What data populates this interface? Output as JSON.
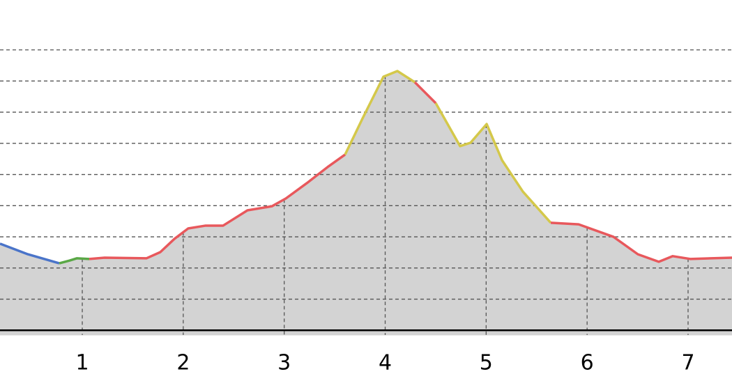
{
  "chart_data": {
    "type": "area",
    "xlim": [
      0.185,
      7.435
    ],
    "xticks": [
      1,
      2,
      3,
      4,
      5,
      6,
      7
    ],
    "ylim": [
      -0.15,
      10.6
    ],
    "yticks": [
      0,
      1,
      2,
      3,
      4,
      5,
      6,
      7,
      8,
      9
    ],
    "grid": true,
    "fill_color": "#d3d3d3",
    "series": [
      {
        "color": "#4a74c9",
        "x": [
          0.185,
          0.461,
          0.772
        ],
        "values": [
          2.78,
          2.44,
          2.15
        ]
      },
      {
        "color": "#5aa846",
        "x": [
          0.772,
          0.876,
          0.945,
          1.069
        ],
        "values": [
          2.15,
          2.24,
          2.31,
          2.29
        ]
      },
      {
        "color": "#e8585c",
        "x": [
          1.069,
          1.221,
          1.635,
          1.773,
          1.911,
          2.049,
          2.222,
          2.395,
          2.636,
          2.878,
          3.016,
          3.223,
          3.43,
          3.603
        ],
        "values": [
          2.29,
          2.33,
          2.31,
          2.51,
          2.93,
          3.27,
          3.36,
          3.36,
          3.85,
          3.98,
          4.23,
          4.72,
          5.24,
          5.64
        ]
      },
      {
        "color": "#d4c84a",
        "x": [
          3.603,
          3.776,
          3.983,
          4.121,
          4.294
        ],
        "values": [
          5.64,
          6.8,
          8.14,
          8.32,
          7.96
        ]
      },
      {
        "color": "#e8585c",
        "x": [
          4.294,
          4.501
        ],
        "values": [
          7.96,
          7.29
        ]
      },
      {
        "color": "#d4c84a",
        "x": [
          4.501,
          4.742,
          4.846,
          5.005,
          5.157,
          5.364,
          5.64
        ],
        "values": [
          7.29,
          5.91,
          6.02,
          6.62,
          5.46,
          4.45,
          3.45
        ]
      },
      {
        "color": "#e8585c",
        "x": [
          5.64,
          5.916,
          6.261,
          6.503,
          6.71,
          6.848,
          7.021,
          7.435
        ],
        "values": [
          3.45,
          3.4,
          3.0,
          2.44,
          2.2,
          2.38,
          2.29,
          2.33
        ]
      }
    ]
  }
}
